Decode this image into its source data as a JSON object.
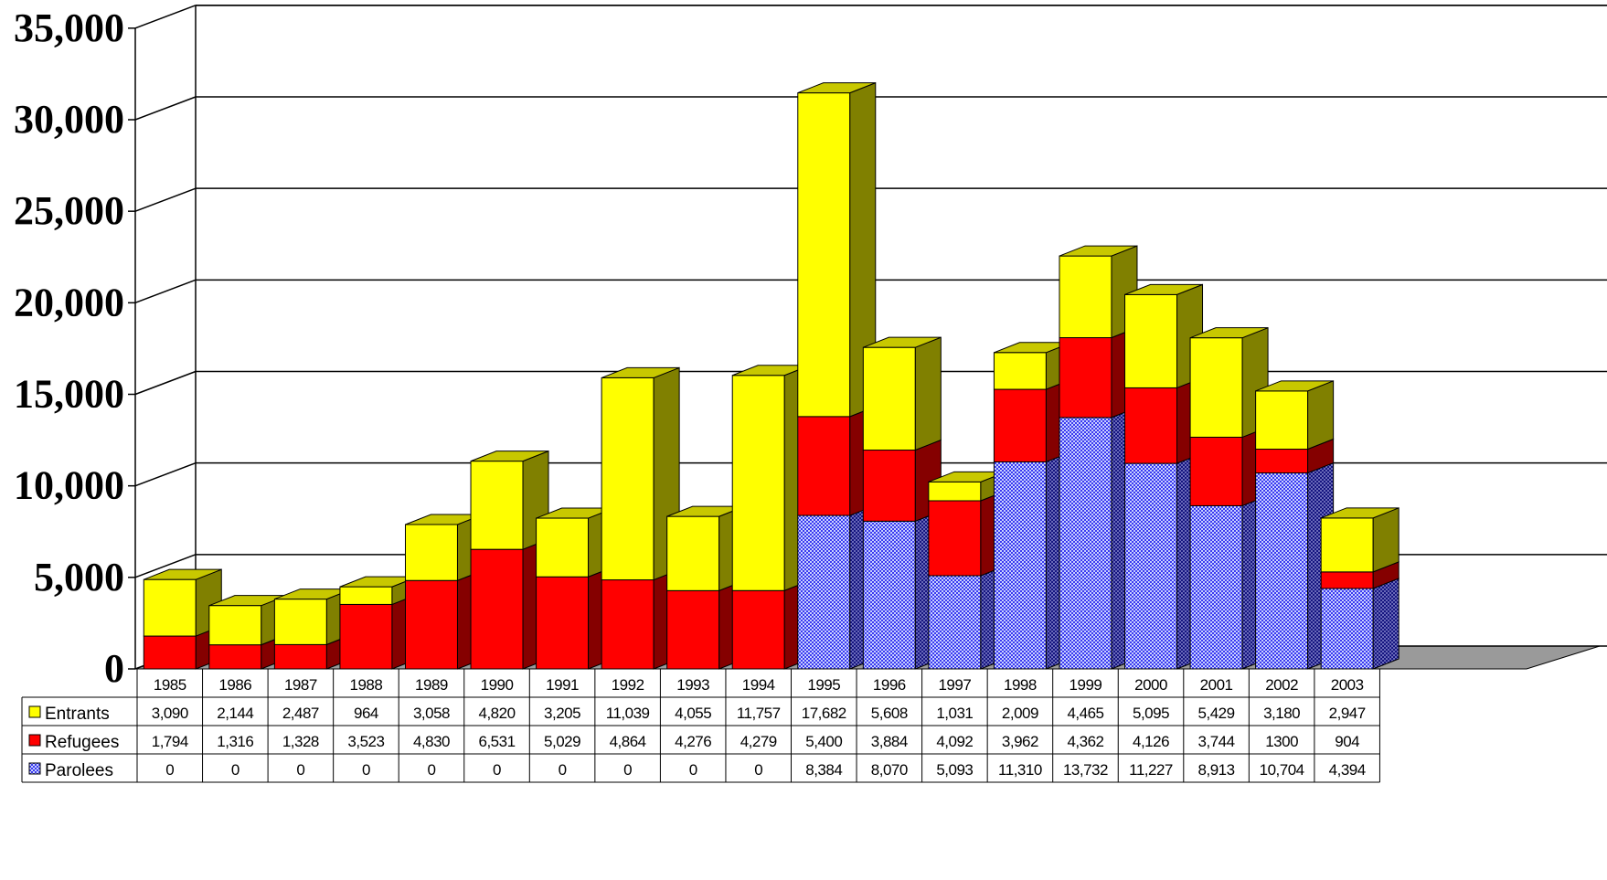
{
  "chart_data": {
    "type": "bar",
    "stacked": true,
    "three_d": true,
    "title": "",
    "xlabel": "",
    "ylabel": "",
    "ylim": [
      0,
      35000
    ],
    "y_ticks": [
      0,
      5000,
      10000,
      15000,
      20000,
      25000,
      30000,
      35000
    ],
    "y_tick_labels": [
      "0",
      "5,000",
      "10,000",
      "15,000",
      "20,000",
      "25,000",
      "30,000",
      "35,000"
    ],
    "grid": true,
    "legend": "data-table",
    "categories": [
      "1985",
      "1986",
      "1987",
      "1988",
      "1989",
      "1990",
      "1991",
      "1992",
      "1993",
      "1994",
      "1995",
      "1996",
      "1997",
      "1998",
      "1999",
      "2000",
      "2001",
      "2002",
      "2003"
    ],
    "series": [
      {
        "name": "Parolees",
        "color": "#3333ee",
        "pattern": "checker",
        "values": [
          0,
          0,
          0,
          0,
          0,
          0,
          0,
          0,
          0,
          0,
          8384,
          8070,
          5093,
          11310,
          13732,
          11227,
          8913,
          10704,
          4394
        ],
        "labels": [
          "0",
          "0",
          "0",
          "0",
          "0",
          "0",
          "0",
          "0",
          "0",
          "0",
          "8,384",
          "8,070",
          "5,093",
          "11,310",
          "13,732",
          "11,227",
          "8,913",
          "10,704",
          "4,394"
        ]
      },
      {
        "name": "Refugees",
        "color": "#ff0000",
        "values": [
          1794,
          1316,
          1328,
          3523,
          4830,
          6531,
          5029,
          4864,
          4276,
          4279,
          5400,
          3884,
          4092,
          3962,
          4362,
          4126,
          3744,
          1300,
          904
        ],
        "labels": [
          "1,794",
          "1,316",
          "1,328",
          "3,523",
          "4,830",
          "6,531",
          "5,029",
          "4,864",
          "4,276",
          "4,279",
          "5,400",
          "3,884",
          "4,092",
          "3,962",
          "4,362",
          "4,126",
          "3,744",
          "1300",
          "904"
        ]
      },
      {
        "name": "Entrants",
        "color": "#ffff00",
        "values": [
          3090,
          2144,
          2487,
          964,
          3058,
          4820,
          3205,
          11039,
          4055,
          11757,
          17682,
          5608,
          1031,
          2009,
          4465,
          5095,
          5429,
          3180,
          2947
        ],
        "labels": [
          "3,090",
          "2,144",
          "2,487",
          "964",
          "3,058",
          "4,820",
          "3,205",
          "11,039",
          "4,055",
          "11,757",
          "17,682",
          "5,608",
          "1,031",
          "2,009",
          "4,465",
          "5,095",
          "5,429",
          "3,180",
          "2,947"
        ]
      }
    ],
    "table_rows": [
      "Entrants",
      "Refugees",
      "Parolees"
    ]
  }
}
